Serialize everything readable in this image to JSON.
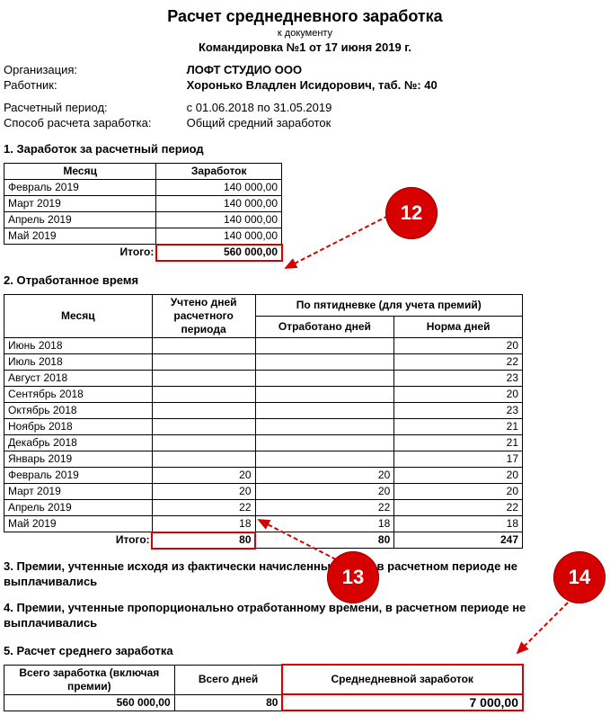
{
  "title": "Расчет среднедневного заработка",
  "subdoc": "к документу",
  "docname": "Командировка №1 от 17 июня 2019 г.",
  "org_label": "Организация:",
  "org": "ЛОФТ СТУДИО ООО",
  "emp_label": "Работник:",
  "emp": "Хоронько Владлен Исидорович, таб. №: 40",
  "period_label": "Расчетный период:",
  "period": "с 01.06.2018 по 31.05.2019",
  "method_label": "Способ расчета заработка:",
  "method": "Общий средний заработок",
  "sec1": "1. Заработок за расчетный период",
  "sec2": "2. Отработанное время",
  "sec3": "3. Премии, учтенные исходя из фактически начисленных сумм, в расчетном периоде не выплачивались",
  "sec4": "4. Премии, учтенные пропорционально отработанному времени, в расчетном периоде не выплачивались",
  "sec5": "5. Расчет среднего  заработка",
  "t1": {
    "col_month": "Месяц",
    "col_earn": "Заработок",
    "rows": [
      {
        "m": "Февраль 2019",
        "v": "140 000,00"
      },
      {
        "m": "Март 2019",
        "v": "140 000,00"
      },
      {
        "m": "Апрель 2019",
        "v": "140 000,00"
      },
      {
        "m": "Май 2019",
        "v": "140 000,00"
      }
    ],
    "itogo_lbl": "Итого:",
    "itogo": "560 000,00"
  },
  "t2": {
    "col_month": "Месяц",
    "col_days": "Учтено дней расчетного периода",
    "col_5_h": "По пятидневке (для учета премий)",
    "col_worked": "Отработано дней",
    "col_norm": "Норма дней",
    "rows": [
      {
        "m": "Июнь 2018",
        "d": "",
        "w": "",
        "n": "20"
      },
      {
        "m": "Июль 2018",
        "d": "",
        "w": "",
        "n": "22"
      },
      {
        "m": "Август 2018",
        "d": "",
        "w": "",
        "n": "23"
      },
      {
        "m": "Сентябрь 2018",
        "d": "",
        "w": "",
        "n": "20"
      },
      {
        "m": "Октябрь 2018",
        "d": "",
        "w": "",
        "n": "23"
      },
      {
        "m": "Ноябрь 2018",
        "d": "",
        "w": "",
        "n": "21"
      },
      {
        "m": "Декабрь 2018",
        "d": "",
        "w": "",
        "n": "21"
      },
      {
        "m": "Январь 2019",
        "d": "",
        "w": "",
        "n": "17"
      },
      {
        "m": "Февраль 2019",
        "d": "20",
        "w": "20",
        "n": "20"
      },
      {
        "m": "Март 2019",
        "d": "20",
        "w": "20",
        "n": "20"
      },
      {
        "m": "Апрель 2019",
        "d": "22",
        "w": "22",
        "n": "22"
      },
      {
        "m": "Май 2019",
        "d": "18",
        "w": "18",
        "n": "18"
      }
    ],
    "itogo_lbl": "Итого:",
    "itogo_d": "80",
    "itogo_w": "80",
    "itogo_n": "247"
  },
  "t5": {
    "col_total": "Всего заработка (включая премии)",
    "col_days": "Всего дней",
    "col_avg": "Среднедневной заработок",
    "total": "560 000,00",
    "days": "80",
    "avg": "7 000,00"
  },
  "badges": {
    "b12": "12",
    "b13": "13",
    "b14": "14"
  },
  "colors": {
    "badge": "#d60000",
    "border": "#000000"
  }
}
